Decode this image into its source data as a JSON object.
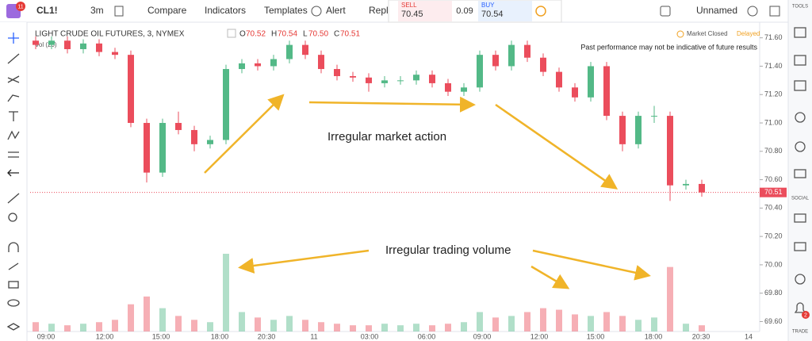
{
  "toolbar": {
    "symbol": "CL1!",
    "badge": "11",
    "interval": "3m",
    "compare": "Compare",
    "indicators": "Indicators",
    "templates": "Templates",
    "alert": "Alert",
    "replay": "Repla",
    "sell_label": "SELL",
    "sell_price": "70.45",
    "spread": "0.09",
    "buy_label": "BUY",
    "buy_price": "70.54",
    "layout_name": "Unnamed"
  },
  "side_panel": {
    "tools": "TOOLS",
    "social": "SOCIAL",
    "trade": "TRADE",
    "alert_badge": "2"
  },
  "chart_data": {
    "type": "candlestick",
    "legend": {
      "title": "LIGHT CRUDE OIL FUTURES, 3, NYMEX",
      "o_label": "O",
      "o": "70.52",
      "h_label": "H",
      "h": "70.54",
      "l_label": "L",
      "l": "70.50",
      "c_label": "C",
      "c": "70.51",
      "volume": "Vol (20)"
    },
    "status": "Market Closed",
    "delayed": "Delayed",
    "disclaimer": "Past performance may not be indicative of future results",
    "annotations": [
      "Irregular market action",
      "Irregular trading volume"
    ],
    "last_price": {
      "value": 70.51,
      "label": "70.51"
    },
    "up_color": "#53b987",
    "down_color": "#eb4d5c",
    "ylim": [
      69.53,
      71.71
    ],
    "yticks": [
      {
        "value": 71.6,
        "label": "71.60"
      },
      {
        "value": 71.4,
        "label": "71.40"
      },
      {
        "value": 71.2,
        "label": "71.20"
      },
      {
        "value": 71,
        "label": "71.00"
      },
      {
        "value": 70.8,
        "label": "70.80"
      },
      {
        "value": 70.6,
        "label": "70.60"
      },
      {
        "value": 70.4,
        "label": "70.40"
      },
      {
        "value": 70.2,
        "label": "70.20"
      },
      {
        "value": 70,
        "label": "70.00"
      },
      {
        "value": 69.8,
        "label": "69.80"
      },
      {
        "value": 69.6,
        "label": "69.60"
      }
    ],
    "time_labels": [
      "09:00",
      "12:00",
      "15:00",
      "18:00",
      "20:30",
      "11",
      "03:00",
      "06:00",
      "09:00",
      "12:00",
      "15:00",
      "18:00",
      "20:30",
      "14"
    ],
    "candles": [
      [
        71.58,
        71.61,
        71.52,
        71.55
      ],
      [
        71.55,
        71.61,
        71.52,
        71.58
      ],
      [
        71.58,
        71.61,
        71.49,
        71.52
      ],
      [
        71.52,
        71.59,
        71.49,
        71.56
      ],
      [
        71.56,
        71.59,
        71.47,
        71.5
      ],
      [
        71.5,
        71.53,
        71.45,
        71.48
      ],
      [
        71.48,
        71.51,
        70.97,
        71
      ],
      [
        71,
        71.03,
        70.58,
        70.65
      ],
      [
        70.65,
        71.03,
        70.62,
        71
      ],
      [
        71,
        71.08,
        70.92,
        70.95
      ],
      [
        70.95,
        70.98,
        70.8,
        70.85
      ],
      [
        70.85,
        70.91,
        70.82,
        70.88
      ],
      [
        70.88,
        71.41,
        70.85,
        71.38
      ],
      [
        71.38,
        71.45,
        71.35,
        71.42
      ],
      [
        71.42,
        71.45,
        71.37,
        71.4
      ],
      [
        71.4,
        71.48,
        71.37,
        71.45
      ],
      [
        71.45,
        71.58,
        71.42,
        71.55
      ],
      [
        71.55,
        71.58,
        71.45,
        71.48
      ],
      [
        71.48,
        71.51,
        71.35,
        71.38
      ],
      [
        71.38,
        71.41,
        71.3,
        71.33
      ],
      [
        71.33,
        71.36,
        71.29,
        71.32
      ],
      [
        71.32,
        71.35,
        71.22,
        71.28
      ],
      [
        71.28,
        71.33,
        71.25,
        71.3
      ],
      [
        71.3,
        71.33,
        71.27,
        71.3
      ],
      [
        71.3,
        71.37,
        71.27,
        71.34
      ],
      [
        71.34,
        71.37,
        71.25,
        71.28
      ],
      [
        71.28,
        71.31,
        71.19,
        71.22
      ],
      [
        71.22,
        71.28,
        71.19,
        71.25
      ],
      [
        71.25,
        71.51,
        71.22,
        71.48
      ],
      [
        71.48,
        71.51,
        71.37,
        71.4
      ],
      [
        71.4,
        71.58,
        71.37,
        71.55
      ],
      [
        71.55,
        71.58,
        71.43,
        71.46
      ],
      [
        71.46,
        71.49,
        71.33,
        71.36
      ],
      [
        71.36,
        71.39,
        71.22,
        71.25
      ],
      [
        71.25,
        71.28,
        71.15,
        71.18
      ],
      [
        71.18,
        71.43,
        71.15,
        71.4
      ],
      [
        71.4,
        71.43,
        71.02,
        71.05
      ],
      [
        71.05,
        71.08,
        70.8,
        70.85
      ],
      [
        70.85,
        71.08,
        70.82,
        71.05
      ],
      [
        71.05,
        71.12,
        71,
        71.05
      ],
      [
        71.05,
        71.08,
        70.45,
        70.56
      ],
      [
        70.56,
        70.6,
        70.53,
        70.57
      ],
      [
        70.57,
        70.6,
        70.48,
        70.51
      ]
    ],
    "volume": [
      12,
      10,
      8,
      10,
      12,
      15,
      35,
      45,
      30,
      20,
      15,
      12,
      100,
      25,
      18,
      15,
      20,
      15,
      12,
      10,
      8,
      8,
      10,
      8,
      10,
      8,
      10,
      12,
      25,
      18,
      20,
      25,
      30,
      28,
      22,
      20,
      25,
      20,
      15,
      18,
      83,
      10,
      8
    ]
  }
}
